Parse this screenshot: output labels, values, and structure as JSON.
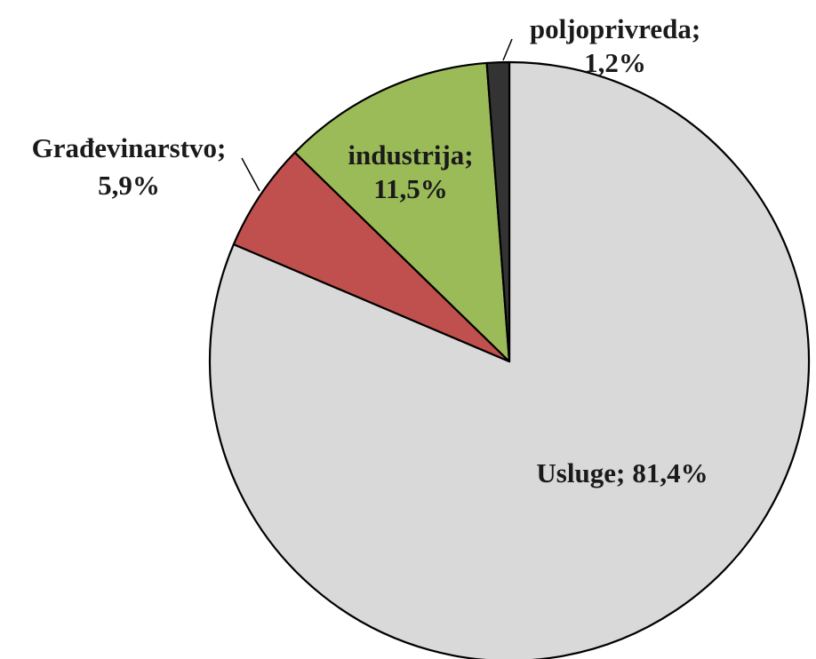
{
  "chart_data": {
    "type": "pie",
    "categories": [
      "Usluge;",
      "Građevinarstvo;",
      "industrija;",
      "poljoprivreda;"
    ],
    "values": [
      81.4,
      5.9,
      11.5,
      1.2
    ],
    "value_labels": [
      "81,4%",
      "5,9%",
      "11,5%",
      "1,2%"
    ],
    "colors": [
      "#d9d9d9",
      "#c0504d",
      "#9bbb59",
      "#333333"
    ],
    "start_angle": 0,
    "direction": "clockwise"
  }
}
